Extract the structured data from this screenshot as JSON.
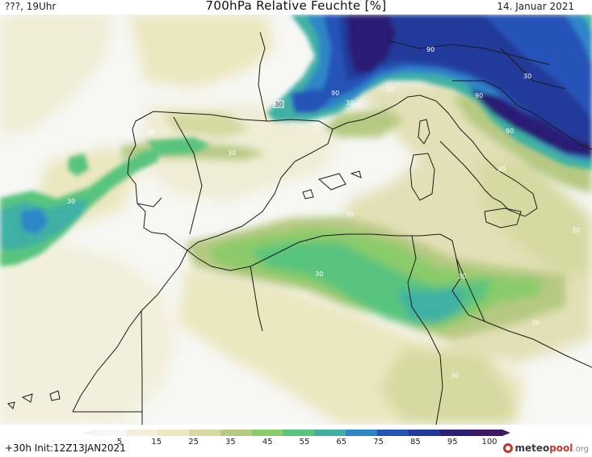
{
  "header": {
    "left": "???, 19Uhr",
    "title": "700hPa Relative Feuchte [%]",
    "date": "14. Januar 2021"
  },
  "footer": {
    "run_info": "+30h  Init:12Z13JAN2021",
    "brand_main": "meteo",
    "brand_accent": "pool",
    "brand_suffix": ".org"
  },
  "legend": {
    "ticks": [
      "5",
      "15",
      "25",
      "35",
      "45",
      "55",
      "65",
      "75",
      "85",
      "95",
      "100"
    ],
    "colors": [
      "#f8f8f8",
      "#f2f0dc",
      "#ebe7bf",
      "#d6d9a0",
      "#b6c982",
      "#8bcb6b",
      "#58c47e",
      "#3fb0a4",
      "#2e86c7",
      "#2653b8",
      "#243a9a",
      "#2a1f75",
      "#3c1a60"
    ]
  },
  "contours": {
    "labels": [
      "30",
      "30",
      "30",
      "90",
      "30",
      "90",
      "30",
      "90",
      "30",
      "90",
      "30",
      "30",
      "30",
      "30",
      "30",
      "30",
      "30",
      "30",
      "30",
      "30",
      "30"
    ]
  }
}
